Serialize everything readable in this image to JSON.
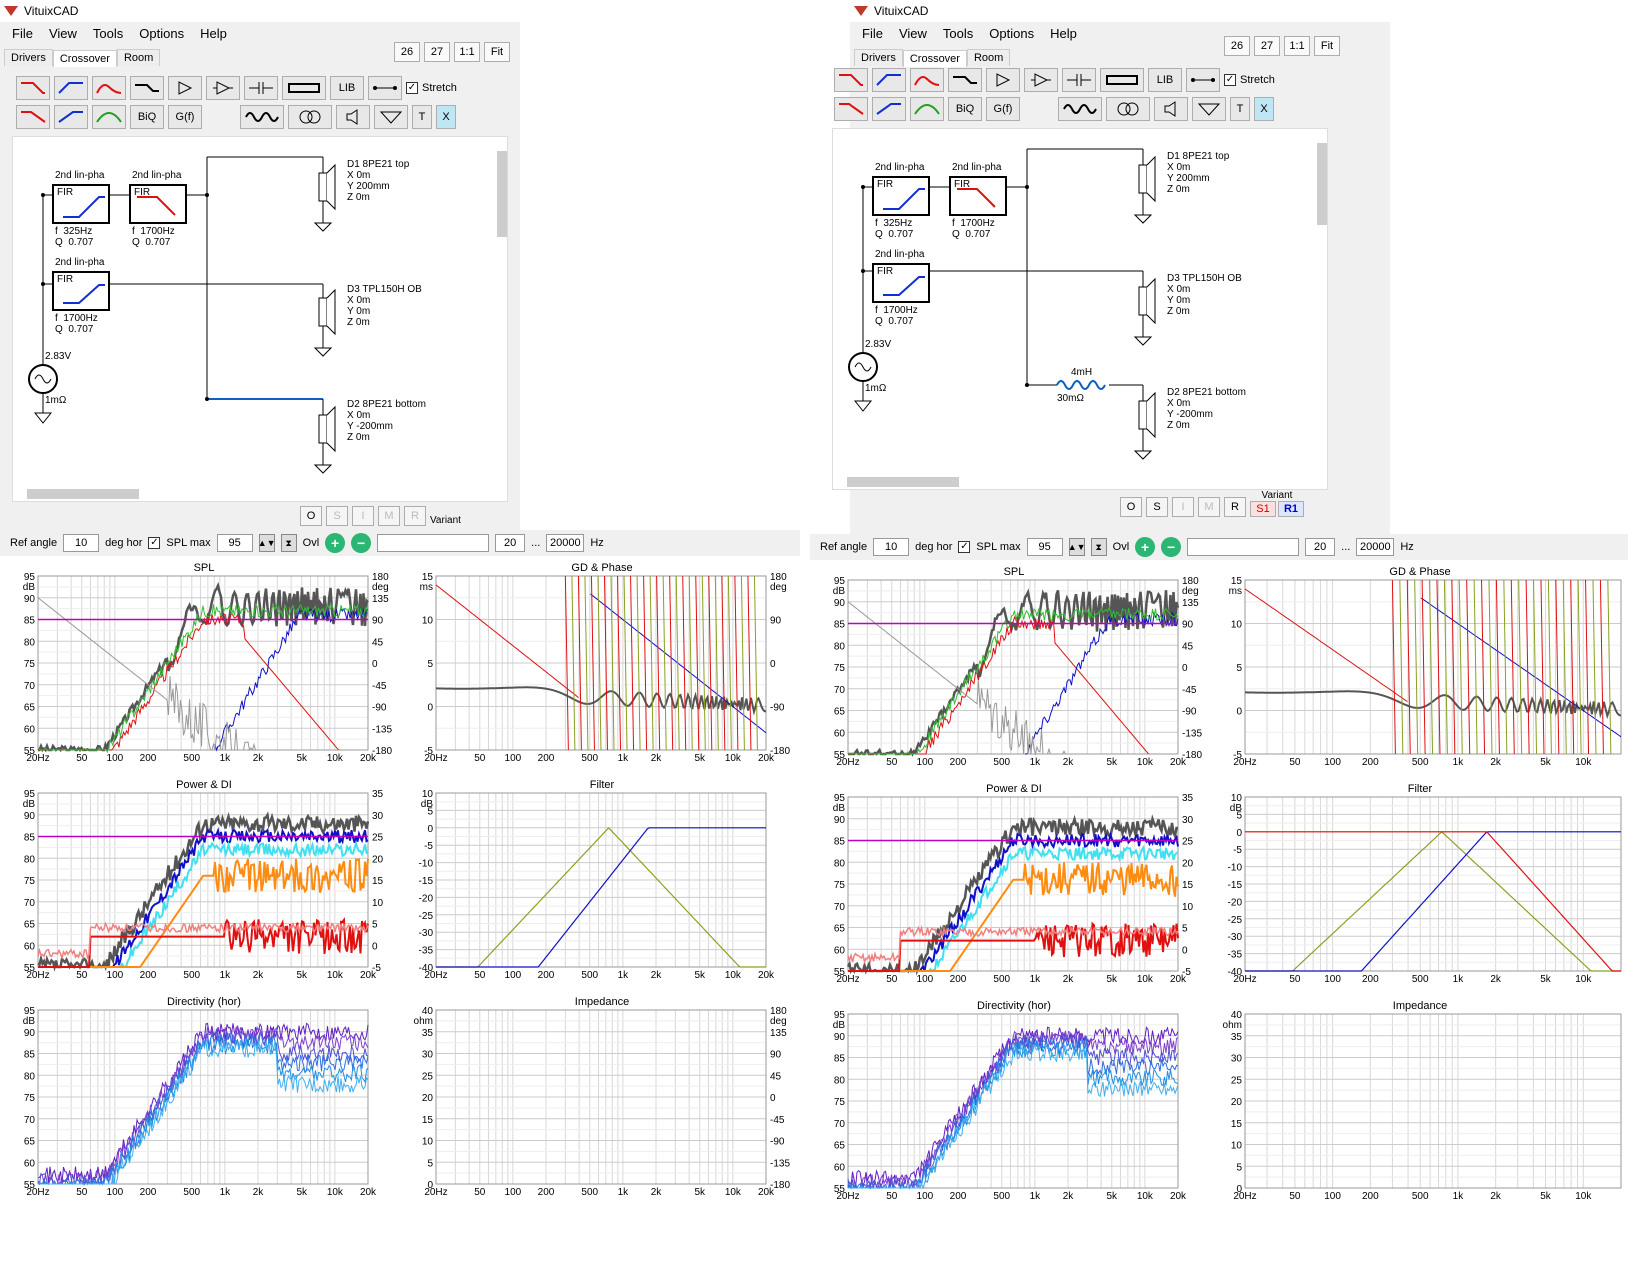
{
  "app_title": "VituixCAD",
  "menu": [
    "File",
    "View",
    "Tools",
    "Options",
    "Help"
  ],
  "tabs": [
    "Drivers",
    "Crossover",
    "Room"
  ],
  "zoom_buttons": [
    "26",
    "27",
    "1:1",
    "Fit"
  ],
  "toolbar": {
    "lib_label": "LIB",
    "biq_label": "BiQ",
    "gf_label": "G(f)",
    "stretch_label": "Stretch",
    "t_label": "T",
    "x_label": "X"
  },
  "schematic": {
    "block1_title": "2nd lin-pha",
    "block1_fir": "FIR",
    "block1_f": "f  325Hz",
    "block1_q": "Q  0.707",
    "block2_title": "2nd lin-pha",
    "block2_fir": "FIR",
    "block2_f": "f  1700Hz",
    "block2_q": "Q  0.707",
    "block3_title": "2nd lin-pha",
    "block3_fir": "FIR",
    "block3_f": "f  1700Hz",
    "block3_q": "Q  0.707",
    "source_voltage": "2.83V",
    "source_res": "1mΩ",
    "d1": "D1 8PE21 top\nX 0m\nY 200mm\nZ 0m",
    "d3": "D3 TPL150H OB\nX 0m\nY 0m\nZ 0m",
    "d2": "D2 8PE21 bottom\nX 0m\nY -200mm\nZ 0m",
    "inductor_value": "4mH",
    "inductor_res": "30mΩ"
  },
  "bottom_buttons": [
    "O",
    "S",
    "I",
    "M",
    "R"
  ],
  "variant": {
    "label": "Variant",
    "s1": "S1",
    "r1": "R1"
  },
  "controls": {
    "ref_angle_label": "Ref angle",
    "ref_angle_value": "10",
    "deg_hor": "deg hor",
    "spl_max_label": "SPL max",
    "spl_max_value": "95",
    "ovl_label": "Ovl",
    "freq_min": "20",
    "ellipsis": "...",
    "freq_max": "20000",
    "hz": "Hz"
  },
  "panels": {
    "spl": "SPL",
    "gd": "GD & Phase",
    "power": "Power & DI",
    "filter": "Filter",
    "directivity": "Directivity (hor)",
    "impedance": "Impedance"
  },
  "x_ticks": [
    "20Hz",
    "50",
    "100",
    "200",
    "500",
    "1k",
    "2k",
    "5k",
    "10k",
    "20k"
  ],
  "x_ticks_r": [
    "20Hz",
    "50",
    "100",
    "200",
    "500",
    "1k",
    "2k",
    "5k",
    "10k"
  ],
  "axes": {
    "db_unit": "dB",
    "ms_unit": "ms",
    "deg_unit": "deg",
    "ohm_unit": "ohm",
    "spl_y": [
      "95",
      "90",
      "85",
      "80",
      "75",
      "70",
      "65",
      "60",
      "55"
    ],
    "spl_y2": [
      "180",
      "135",
      "90",
      "45",
      "0",
      "-45",
      "-90",
      "-135",
      "-180"
    ],
    "gd_y": [
      "15",
      "10",
      "5",
      "0",
      "-5"
    ],
    "gd_y2": [
      "180",
      "90",
      "0",
      "-90",
      "-180"
    ],
    "pow_y2": [
      "35",
      "30",
      "25",
      "20",
      "15",
      "10",
      "5",
      "0",
      "-5"
    ],
    "filt_y": [
      "10",
      "5",
      "0",
      "-5",
      "-10",
      "-15",
      "-20",
      "-25",
      "-30",
      "-35",
      "-40"
    ],
    "imp_y": [
      "40",
      "35",
      "30",
      "25",
      "20",
      "15",
      "10",
      "5",
      "0"
    ]
  },
  "colors": {
    "red": "#e01010",
    "blue": "#1010c8",
    "green": "#30c030",
    "gray": "#555555",
    "magenta": "#c000c0",
    "olive": "#8aa020",
    "cyan": "#40e0f0",
    "orange": "#ff8c10",
    "purple": "#7030c0"
  }
}
